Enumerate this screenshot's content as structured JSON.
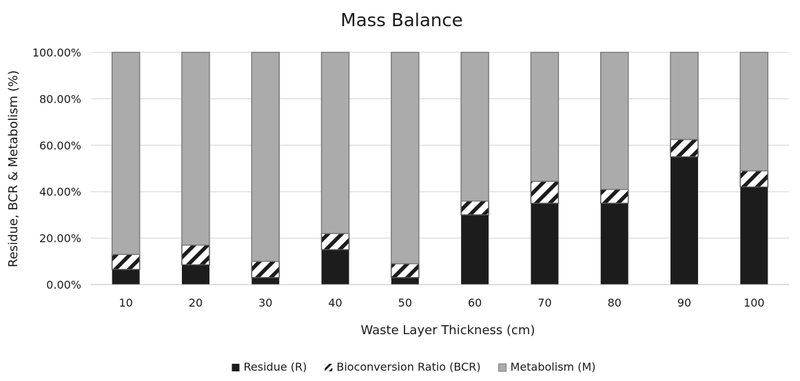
{
  "chart_data": {
    "type": "bar",
    "stacked": true,
    "title": "Mass Balance",
    "xlabel": "Waste Layer Thickness (cm)",
    "ylabel": "Residue,  BCR & Metabolism (%)",
    "categories": [
      "10",
      "20",
      "30",
      "40",
      "50",
      "60",
      "70",
      "80",
      "90",
      "100"
    ],
    "ylim": [
      0,
      100
    ],
    "yticks": [
      0,
      20,
      40,
      60,
      80,
      100
    ],
    "ytick_labels": [
      "0.00%",
      "20.00%",
      "40.00%",
      "60.00%",
      "80.00%",
      "100.00%"
    ],
    "grid": true,
    "legend_position": "bottom",
    "series": [
      {
        "name": "Residue  (R)",
        "pattern": "solid",
        "color": "#1c1c1c",
        "values": [
          6.5,
          8.5,
          3,
          15,
          3,
          30,
          35,
          35,
          55,
          42
        ]
      },
      {
        "name": "Bioconversion Ratio (BCR)",
        "pattern": "diagonal-hatch",
        "color": "#1c1c1c",
        "values": [
          6.5,
          8.5,
          7,
          7,
          6,
          6,
          9.5,
          6,
          7.5,
          7
        ]
      },
      {
        "name": "Metabolism (M)",
        "pattern": "solid",
        "color": "#ababab",
        "values": [
          87,
          83,
          90,
          78,
          91,
          64,
          55.5,
          59,
          37.5,
          51
        ]
      }
    ]
  }
}
